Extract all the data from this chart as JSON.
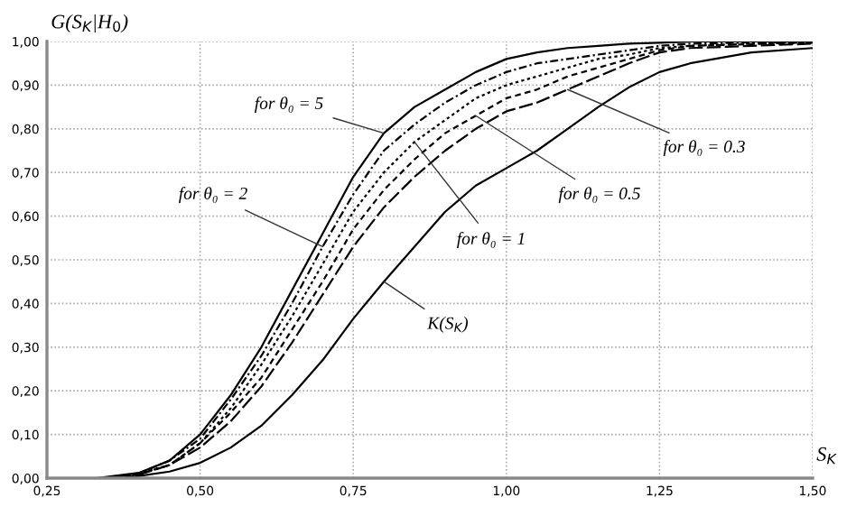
{
  "chart_data": {
    "type": "line",
    "xlabel": "S$_{K}$",
    "ylabel": "G(S$_{K}$|H$_{0}$)",
    "series": [
      {
        "color": "#000000",
        "line_style": "solid",
        "x": [
          0.33,
          0.4,
          0.45,
          0.5,
          0.55,
          0.6,
          0.65,
          0.7,
          0.75,
          0.8,
          0.85,
          0.9,
          0.95,
          1.0,
          1.05,
          1.1,
          1.15,
          1.2,
          1.25,
          1.3,
          1.4,
          1.5
        ],
        "values": [
          0,
          0.012,
          0.04,
          0.1,
          0.19,
          0.3,
          0.43,
          0.56,
          0.69,
          0.79,
          0.85,
          0.89,
          0.93,
          0.96,
          0.975,
          0.985,
          0.99,
          0.995,
          0.997,
          1.0,
          1.0,
          1.0
        ]
      },
      {
        "color": "#000000",
        "line_style": "dashed",
        "x": [
          0.34,
          0.4,
          0.45,
          0.5,
          0.55,
          0.6,
          0.65,
          0.7,
          0.75,
          0.8,
          0.85,
          0.9,
          0.95,
          1.0,
          1.05,
          1.1,
          1.15,
          1.2,
          1.25,
          1.3,
          1.4,
          1.5
        ],
        "values": [
          0,
          0.011,
          0.04,
          0.09,
          0.18,
          0.28,
          0.4,
          0.53,
          0.65,
          0.75,
          0.81,
          0.86,
          0.9,
          0.93,
          0.95,
          0.96,
          0.97,
          0.98,
          0.99,
          0.995,
          0.998,
          0.999
        ]
      },
      {
        "color": "#000000",
        "line_style": "dotted",
        "x": [
          0.35,
          0.4,
          0.45,
          0.5,
          0.55,
          0.6,
          0.65,
          0.7,
          0.75,
          0.8,
          0.85,
          0.9,
          0.95,
          1.0,
          1.05,
          1.1,
          1.15,
          1.2,
          1.25,
          1.3,
          1.4,
          1.5
        ],
        "values": [
          0,
          0.01,
          0.03,
          0.08,
          0.16,
          0.26,
          0.37,
          0.49,
          0.61,
          0.7,
          0.77,
          0.82,
          0.87,
          0.9,
          0.92,
          0.94,
          0.96,
          0.97,
          0.985,
          0.99,
          0.995,
          0.998
        ]
      },
      {
        "color": "#000000",
        "line_style": "dashed",
        "x": [
          0.36,
          0.4,
          0.45,
          0.5,
          0.55,
          0.6,
          0.65,
          0.7,
          0.75,
          0.8,
          0.85,
          0.9,
          0.95,
          1.0,
          1.05,
          1.1,
          1.15,
          1.2,
          1.25,
          1.3,
          1.4,
          1.5
        ],
        "values": [
          0,
          0.009,
          0.03,
          0.08,
          0.15,
          0.23,
          0.34,
          0.45,
          0.57,
          0.66,
          0.73,
          0.79,
          0.83,
          0.87,
          0.89,
          0.92,
          0.94,
          0.96,
          0.98,
          0.99,
          0.994,
          0.997
        ]
      },
      {
        "color": "#000000",
        "line_style": "dashed",
        "x": [
          0.37,
          0.4,
          0.45,
          0.5,
          0.55,
          0.6,
          0.65,
          0.7,
          0.75,
          0.8,
          0.85,
          0.9,
          0.95,
          1.0,
          1.05,
          1.1,
          1.15,
          1.2,
          1.25,
          1.3,
          1.4,
          1.5
        ],
        "values": [
          0,
          0.008,
          0.03,
          0.07,
          0.13,
          0.21,
          0.31,
          0.42,
          0.53,
          0.62,
          0.69,
          0.75,
          0.8,
          0.84,
          0.86,
          0.89,
          0.92,
          0.95,
          0.975,
          0.985,
          0.99,
          0.995
        ]
      },
      {
        "color": "#000000",
        "line_style": "solid",
        "x": [
          0.38,
          0.4,
          0.45,
          0.5,
          0.55,
          0.6,
          0.65,
          0.7,
          0.75,
          0.8,
          0.85,
          0.9,
          0.95,
          1.0,
          1.05,
          1.1,
          1.15,
          1.2,
          1.25,
          1.3,
          1.4,
          1.5
        ],
        "values": [
          0,
          0.005,
          0.015,
          0.035,
          0.07,
          0.12,
          0.19,
          0.27,
          0.365,
          0.45,
          0.53,
          0.61,
          0.67,
          0.71,
          0.75,
          0.8,
          0.85,
          0.895,
          0.93,
          0.95,
          0.975,
          0.985
        ]
      }
    ],
    "annotations": [
      {
        "text": "for θ₀ = 5",
        "x": 0.8,
        "y": 0.79
      },
      {
        "text": "for θ₀ = 2",
        "x": 0.7,
        "y": 0.53
      },
      {
        "text": "for θ₀ = 1",
        "x": 0.85,
        "y": 0.77
      },
      {
        "text": "for θ₀ = 0.5",
        "x": 0.95,
        "y": 0.83
      },
      {
        "text": "for θ₀ = 0.3",
        "x": 1.1,
        "y": 0.89
      },
      {
        "text": "K(S$_{K}$)",
        "x": 0.8,
        "y": 0.45
      }
    ],
    "xlim": [
      0.25,
      1.5
    ],
    "ylim": [
      0,
      1.0
    ],
    "xticks": [
      {
        "value": 0.25,
        "label": "0,25"
      },
      {
        "value": 0.5,
        "label": "0,50"
      },
      {
        "value": 0.75,
        "label": "0,75"
      },
      {
        "value": 1.0,
        "label": "1,00"
      },
      {
        "value": 1.25,
        "label": "1,25"
      },
      {
        "value": 1.5,
        "label": "1,50"
      }
    ],
    "yticks": [
      {
        "value": 0,
        "label": "0,00"
      },
      {
        "value": 0.1,
        "label": "0,10"
      },
      {
        "value": 0.2,
        "label": "0,20"
      },
      {
        "value": 0.3,
        "label": "0,30"
      },
      {
        "value": 0.4,
        "label": "0,40"
      },
      {
        "value": 0.5,
        "label": "0,50"
      },
      {
        "value": 0.6,
        "label": "0,60"
      },
      {
        "value": 0.7,
        "label": "0,70"
      },
      {
        "value": 0.8,
        "label": "0,80"
      },
      {
        "value": 0.9,
        "label": "0,90"
      },
      {
        "value": 1.0,
        "label": "1,00"
      }
    ],
    "grid": true
  }
}
